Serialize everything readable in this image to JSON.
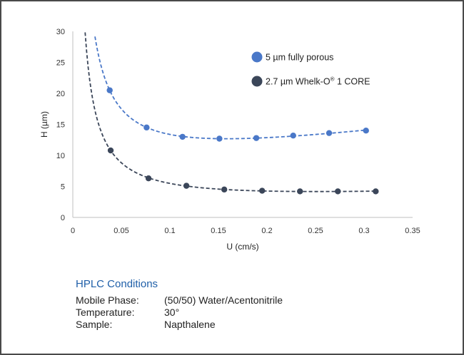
{
  "chart_data": {
    "type": "scatter",
    "xlabel": "U (cm/s)",
    "ylabel": "H (µm)",
    "xlim": [
      0,
      0.35
    ],
    "ylim": [
      0,
      30
    ],
    "xticks": [
      "0",
      "0.05",
      "0.1",
      "0.15",
      "0.2",
      "0.25",
      "0.3",
      "0.35"
    ],
    "yticks": [
      "0",
      "5",
      "10",
      "15",
      "20",
      "25",
      "30"
    ],
    "grid": false,
    "legend_position": "top-right",
    "fit": "dashed trend line",
    "series": [
      {
        "name": "5 µm fully porous",
        "color": "#4a78c8",
        "x": [
          0.038,
          0.076,
          0.113,
          0.151,
          0.189,
          0.227,
          0.264,
          0.302
        ],
        "y": [
          20.5,
          14.5,
          13.0,
          12.7,
          12.8,
          13.2,
          13.6,
          14.0
        ]
      },
      {
        "name": "2.7 µm Whelk-O® 1 CORE",
        "name_parts": [
          "2.7 µm Whelk-O",
          "®",
          " 1 CORE"
        ],
        "color": "#3b4659",
        "x": [
          0.039,
          0.078,
          0.117,
          0.156,
          0.195,
          0.234,
          0.273,
          0.312
        ],
        "y": [
          10.8,
          6.3,
          5.1,
          4.5,
          4.3,
          4.2,
          4.2,
          4.2
        ]
      }
    ]
  },
  "conditions": {
    "title": "HPLC Conditions",
    "rows": [
      {
        "label": "Mobile Phase:",
        "value": "(50/50) Water/Acentonitrile"
      },
      {
        "label": "Temperature:",
        "value": "30°"
      },
      {
        "label": "Sample:",
        "value": "Napthalene"
      }
    ]
  }
}
